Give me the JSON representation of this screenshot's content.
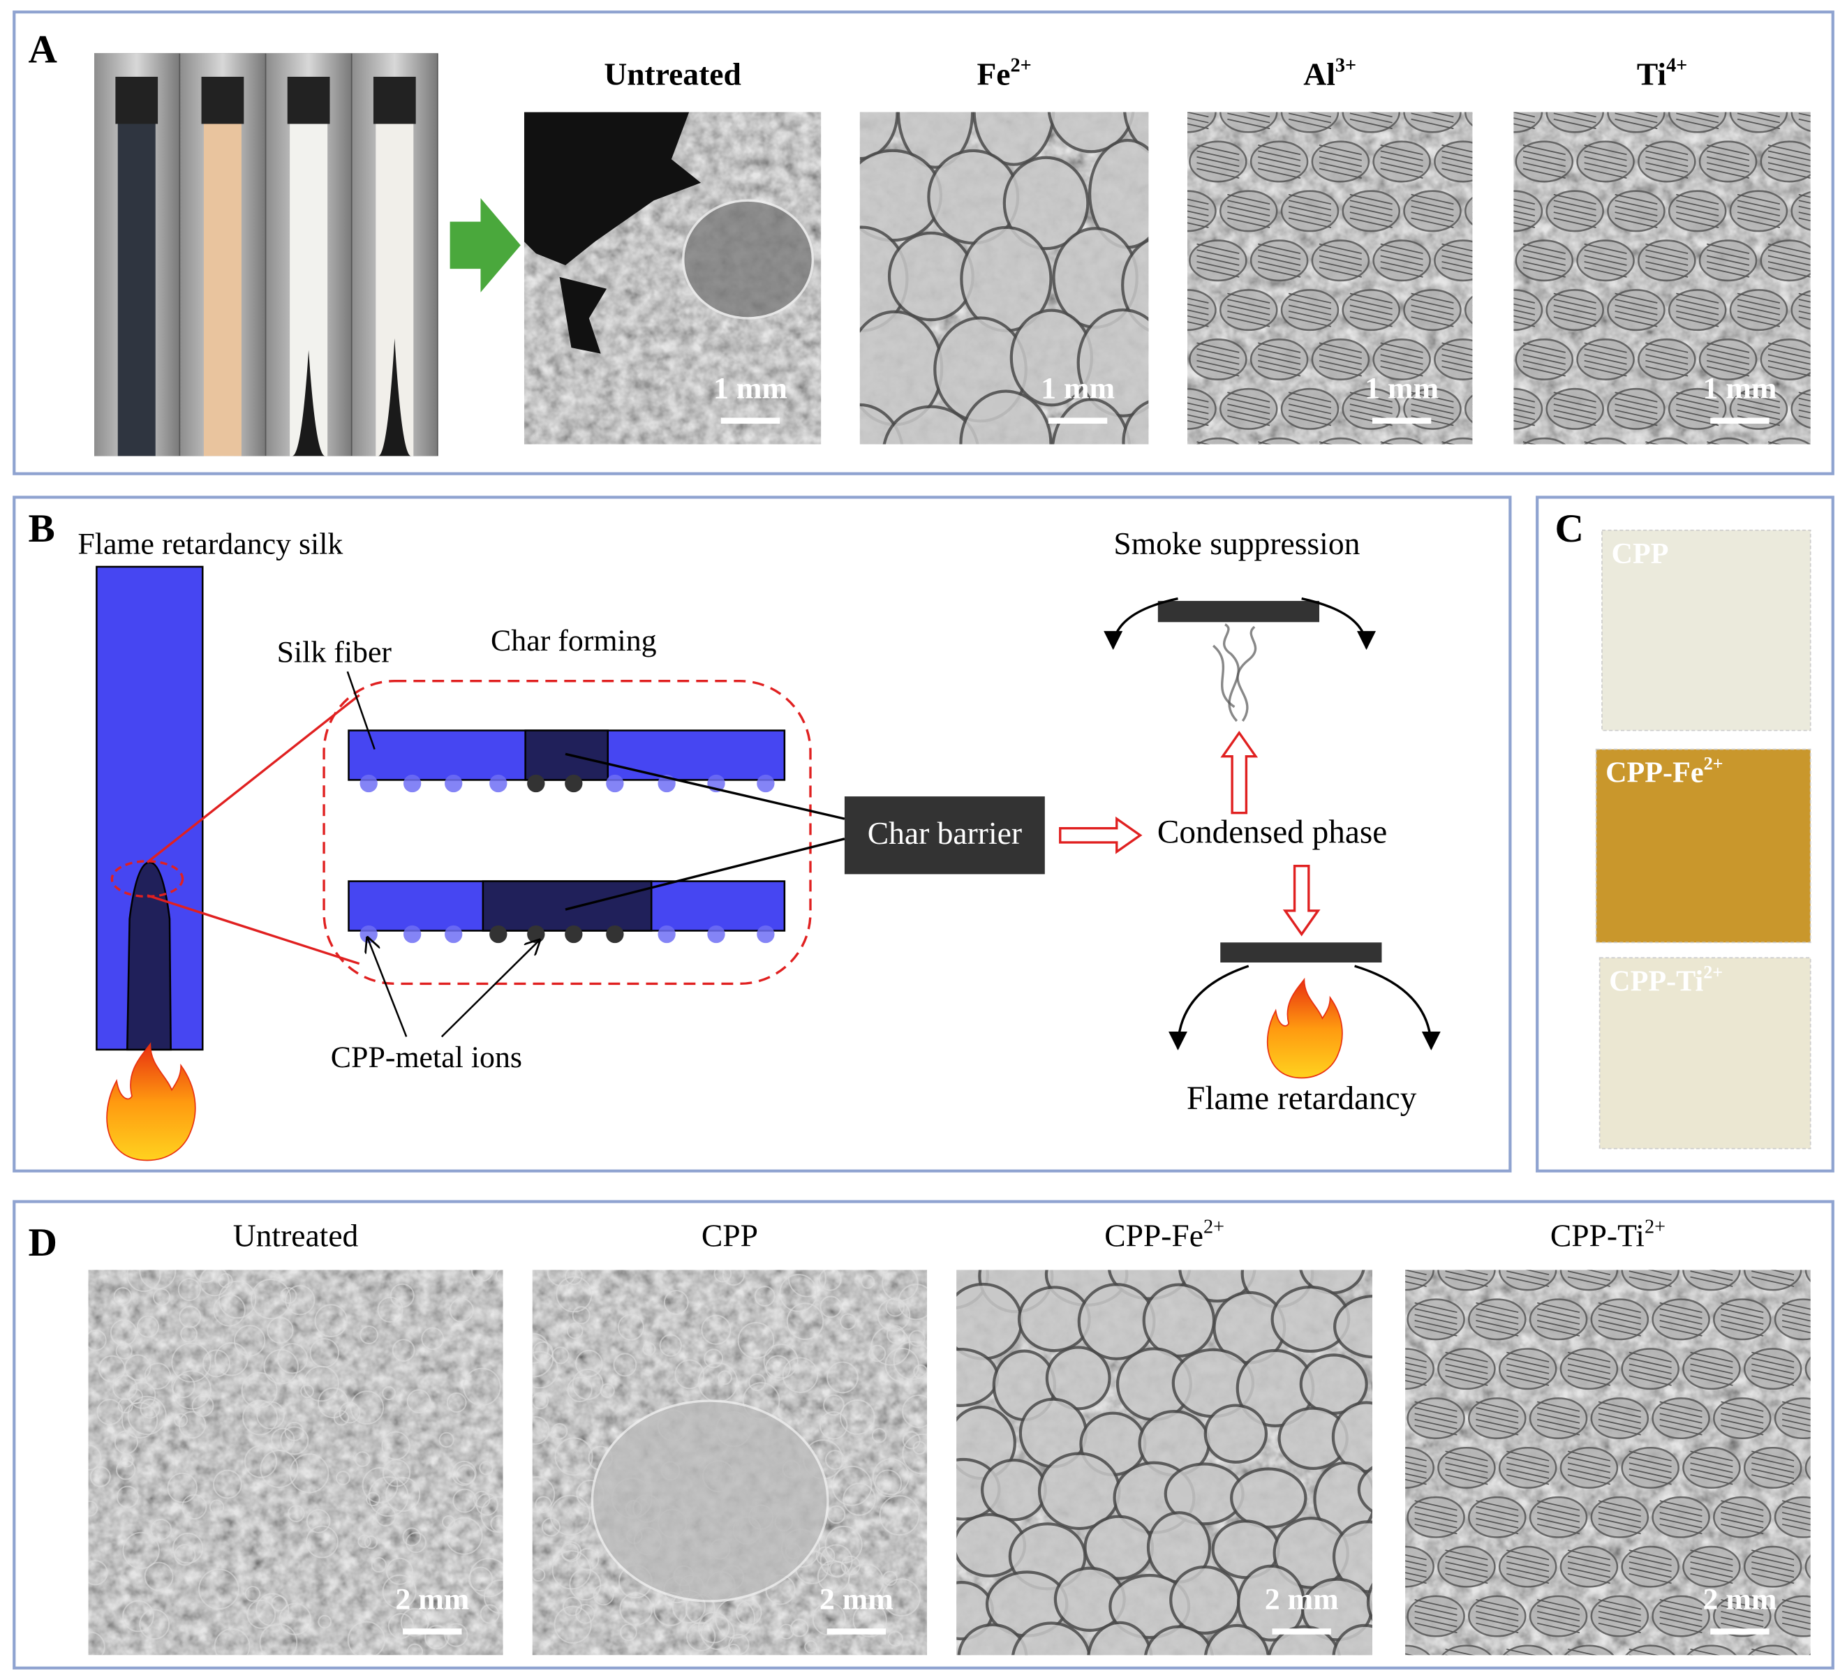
{
  "panel_a": {
    "label": "A",
    "images": [
      {
        "title": {
          "text": "Untreated"
        },
        "scale_bar": "1 mm"
      },
      {
        "title": {
          "text": "Fe",
          "sup": "2+"
        },
        "scale_bar": "1 mm"
      },
      {
        "title": {
          "text": "Al",
          "sup": "3+"
        },
        "scale_bar": "1 mm"
      },
      {
        "title": {
          "text": "Ti",
          "sup": "4+"
        },
        "scale_bar": "1 mm"
      }
    ]
  },
  "panel_b": {
    "label": "B",
    "strip_title": "Flame retardancy silk",
    "silk_fiber": "Silk fiber",
    "char_forming": "Char forming",
    "metal_ions": "CPP-metal ions",
    "char_barrier": "Char barrier",
    "condensed_phase": "Condensed phase",
    "smoke_suppression": "Smoke suppression",
    "flame_retardancy": "Flame retardancy"
  },
  "panel_c": {
    "label": "C",
    "swatches": [
      {
        "text": "CPP"
      },
      {
        "text": "CPP-Fe",
        "sup": "2+"
      },
      {
        "text": "CPP-Ti",
        "sup": "2+"
      }
    ]
  },
  "panel_d": {
    "label": "D",
    "images": [
      {
        "title": {
          "text": "Untreated"
        },
        "scale_bar": "2 mm"
      },
      {
        "title": {
          "text": "CPP"
        },
        "scale_bar": "2 mm"
      },
      {
        "title": {
          "text": "CPP-Fe",
          "sup": "2+"
        },
        "scale_bar": "2 mm"
      },
      {
        "title": {
          "text": "CPP-Ti",
          "sup": "2+"
        },
        "scale_bar": "2 mm"
      }
    ]
  }
}
